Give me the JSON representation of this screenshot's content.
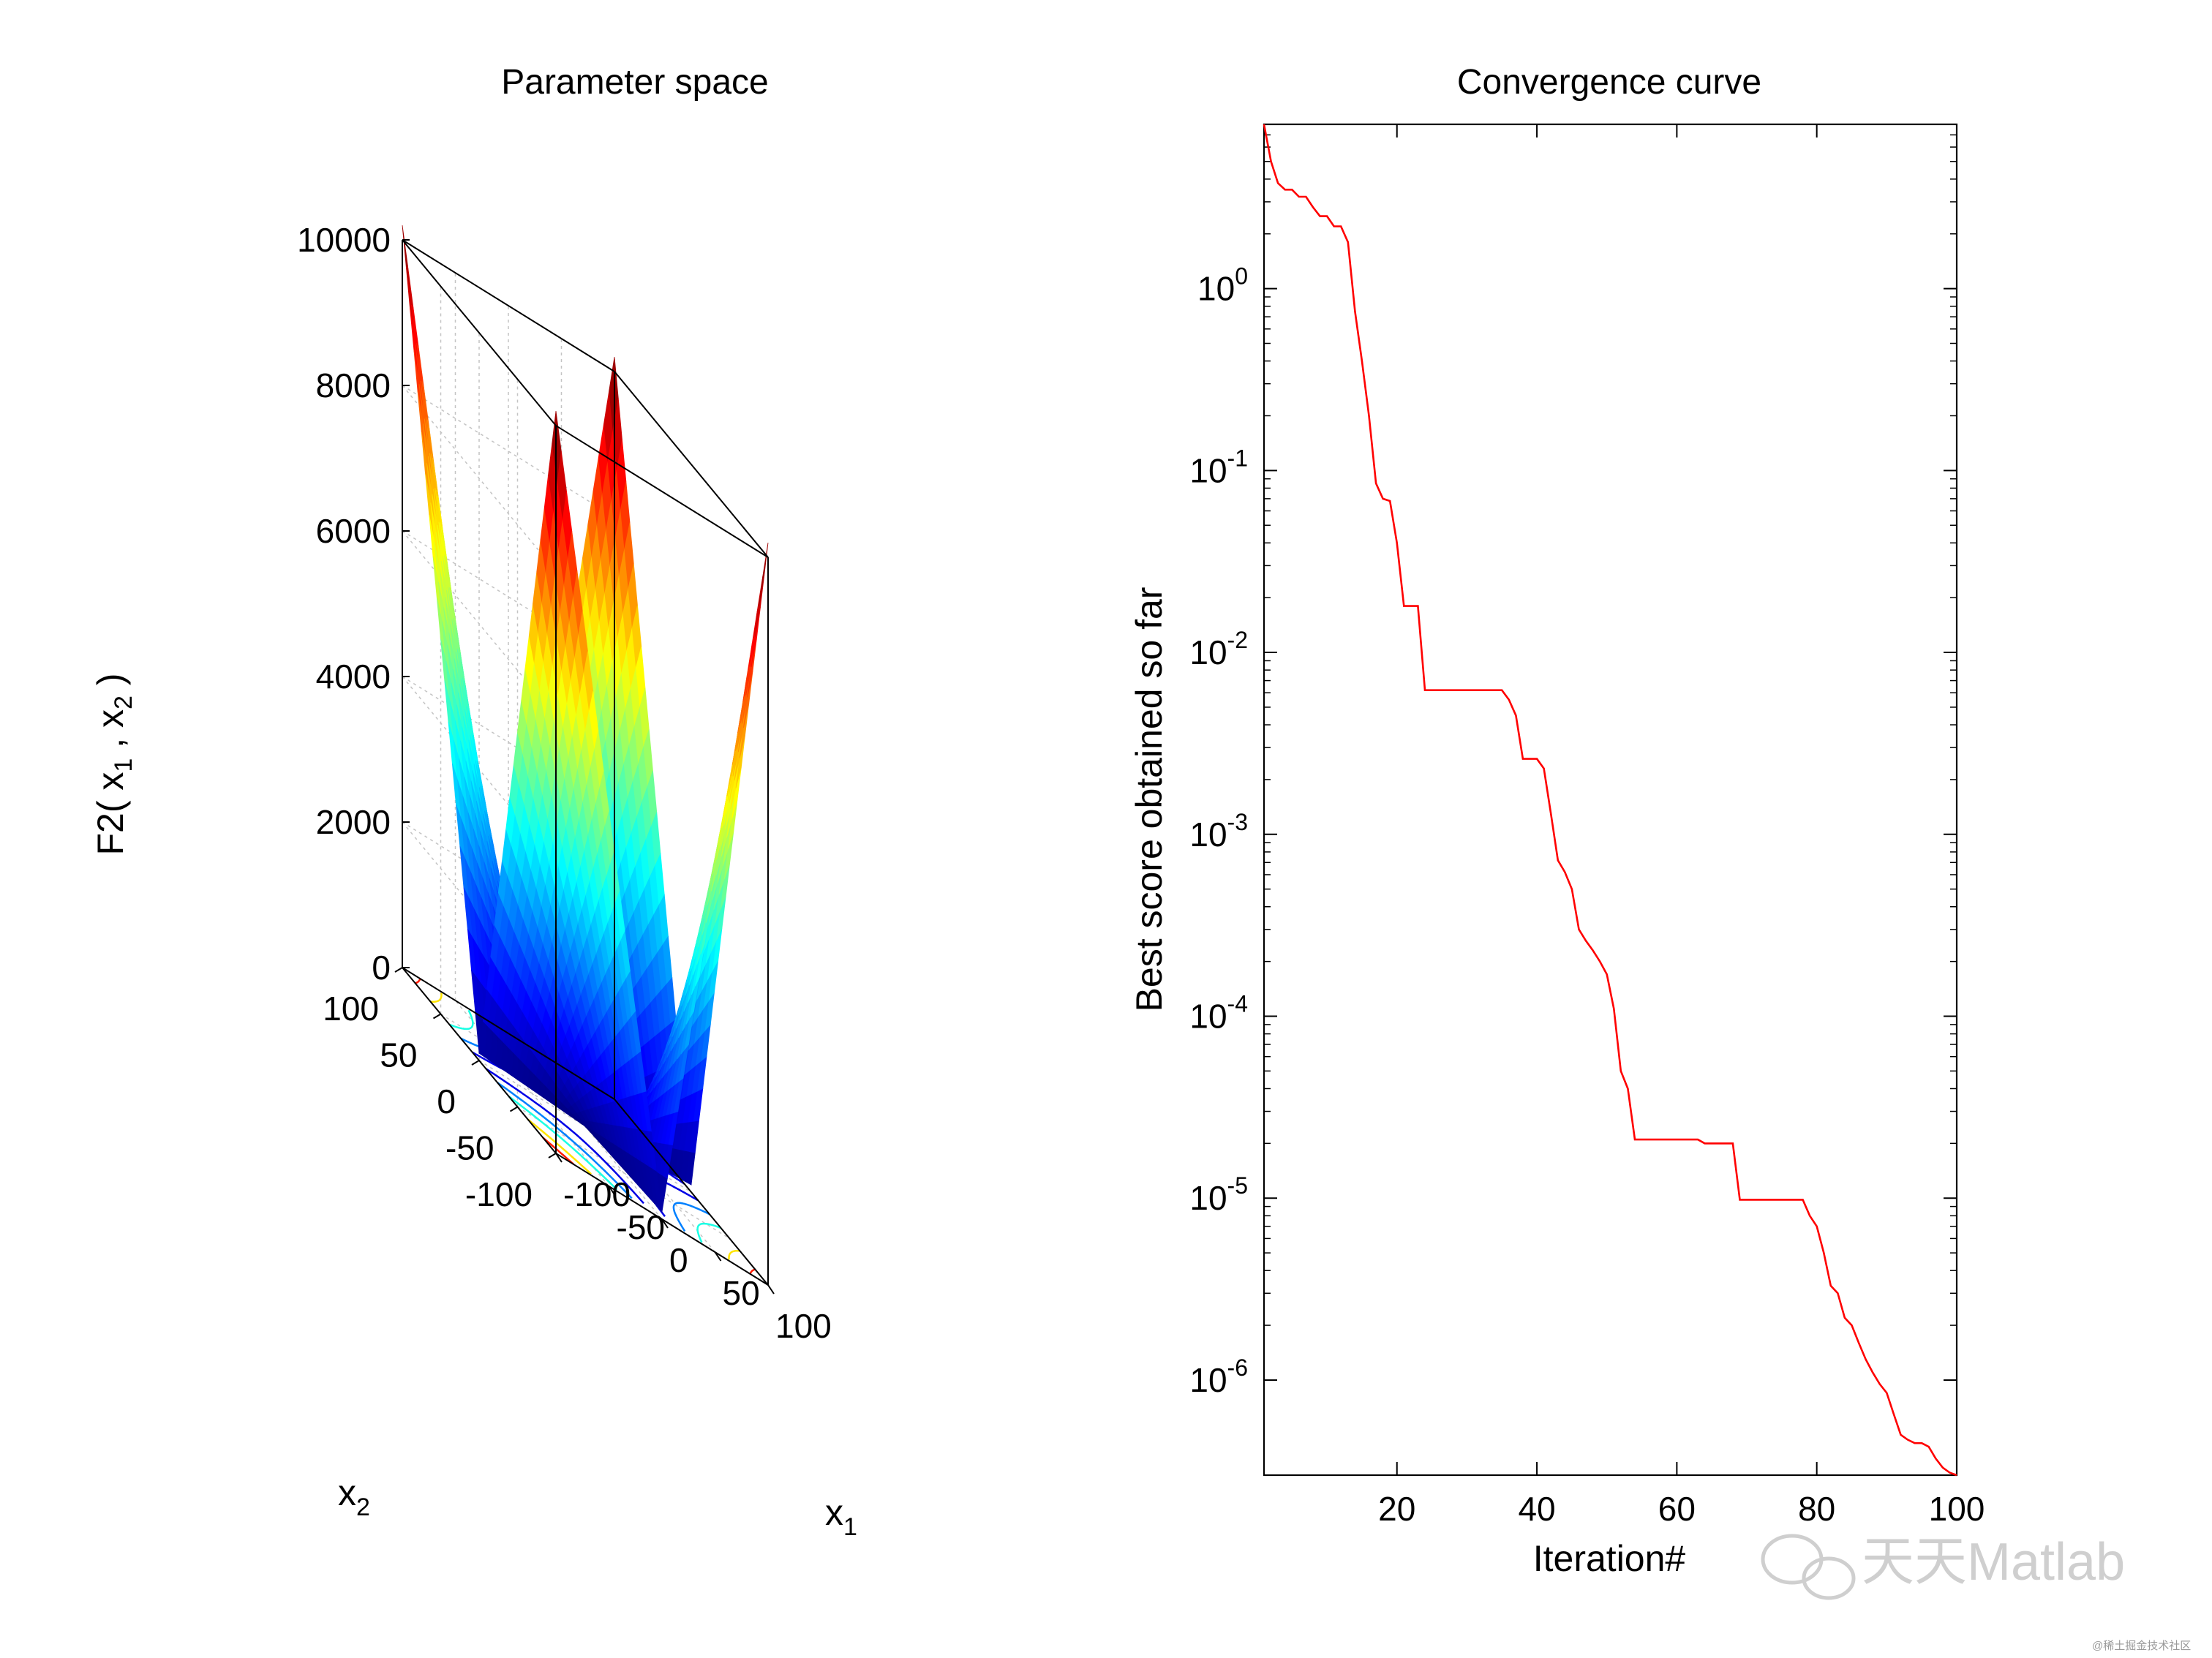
{
  "figure": {
    "watermark": "天天Matlab",
    "watermark_small": "@稀土掘金技术社区",
    "colors": {
      "curve": "#ff0000",
      "axes": "#000000",
      "grid": "#bdbdbd"
    }
  },
  "chart_data": [
    {
      "type": "surface",
      "title": "Parameter space",
      "function": "F2",
      "zlabel": "F2( x",
      "zlabel_sub1": "1",
      "zlabel_mid": " , x",
      "zlabel_sub2": "2",
      "zlabel_end": " )",
      "xlabel": "x",
      "xlabel_sub": "1",
      "ylabel": "x",
      "ylabel_sub": "2",
      "xlim": [
        -100,
        100
      ],
      "ylim": [
        -100,
        100
      ],
      "zlim": [
        0,
        10000
      ],
      "x_ticks": [
        "-100",
        "-50",
        "0",
        "50",
        "100"
      ],
      "y_ticks": [
        "-100",
        "-50",
        "0",
        "50",
        "100"
      ],
      "z_ticks": [
        "0",
        "2000",
        "4000",
        "6000",
        "8000",
        "10000"
      ],
      "colormap": "jet",
      "grid": true,
      "contours_on_floor": true
    },
    {
      "type": "line",
      "title": "Convergence curve",
      "xlabel": "Iteration#",
      "ylabel": "Best score obtained so far",
      "yscale": "log",
      "xlim": [
        1,
        100
      ],
      "ylim": [
        3e-07,
        8
      ],
      "x_ticks": [
        "20",
        "40",
        "60",
        "80",
        "100"
      ],
      "y_ticks": [
        {
          "base": "10",
          "exp": "0"
        },
        {
          "base": "10",
          "exp": "-1"
        },
        {
          "base": "10",
          "exp": "-2"
        },
        {
          "base": "10",
          "exp": "-3"
        },
        {
          "base": "10",
          "exp": "-4"
        },
        {
          "base": "10",
          "exp": "-5"
        },
        {
          "base": "10",
          "exp": "-6"
        }
      ],
      "grid": false,
      "series": [
        {
          "color": "#ff0000",
          "x": [
            1,
            2,
            3,
            4,
            5,
            6,
            7,
            8,
            9,
            10,
            11,
            12,
            13,
            14,
            15,
            16,
            17,
            18,
            19,
            20,
            21,
            22,
            23,
            24,
            25,
            26,
            27,
            28,
            29,
            30,
            31,
            32,
            33,
            34,
            35,
            36,
            37,
            38,
            39,
            40,
            41,
            42,
            43,
            44,
            45,
            46,
            47,
            48,
            49,
            50,
            51,
            52,
            53,
            54,
            55,
            56,
            57,
            58,
            59,
            60,
            61,
            62,
            63,
            64,
            65,
            66,
            67,
            68,
            69,
            70,
            71,
            72,
            73,
            74,
            75,
            76,
            77,
            78,
            79,
            80,
            81,
            82,
            83,
            84,
            85,
            86,
            87,
            88,
            89,
            90,
            91,
            92,
            93,
            94,
            95,
            96,
            97,
            98,
            99,
            100
          ],
          "y": [
            8,
            5,
            3.8,
            3.5,
            3.5,
            3.2,
            3.2,
            2.8,
            2.5,
            2.5,
            2.2,
            2.2,
            1.8,
            0.75,
            0.4,
            0.2,
            0.085,
            0.07,
            0.068,
            0.04,
            0.018,
            0.018,
            0.018,
            0.0062,
            0.0062,
            0.0062,
            0.0062,
            0.0062,
            0.0062,
            0.0062,
            0.0062,
            0.0062,
            0.0062,
            0.0062,
            0.0062,
            0.0055,
            0.0045,
            0.0026,
            0.0026,
            0.0026,
            0.0023,
            0.0013,
            0.00072,
            0.00062,
            0.0005,
            0.0003,
            0.00026,
            0.00023,
            0.0002,
            0.00017,
            0.00011,
            5e-05,
            4e-05,
            2.1e-05,
            2.1e-05,
            2.1e-05,
            2.1e-05,
            2.1e-05,
            2.1e-05,
            2.1e-05,
            2.1e-05,
            2.1e-05,
            2.1e-05,
            2e-05,
            2e-05,
            2e-05,
            2e-05,
            2e-05,
            9.8e-06,
            9.8e-06,
            9.8e-06,
            9.8e-06,
            9.8e-06,
            9.8e-06,
            9.8e-06,
            9.8e-06,
            9.8e-06,
            9.8e-06,
            8e-06,
            7e-06,
            5e-06,
            3.3e-06,
            3e-06,
            2.2e-06,
            2e-06,
            1.6e-06,
            1.3e-06,
            1.1e-06,
            9.5e-07,
            8.5e-07,
            6.5e-07,
            5e-07,
            4.7e-07,
            4.5e-07,
            4.5e-07,
            4.3e-07,
            3.7e-07,
            3.3e-07,
            3.1e-07,
            2.9e-07
          ]
        }
      ]
    }
  ]
}
